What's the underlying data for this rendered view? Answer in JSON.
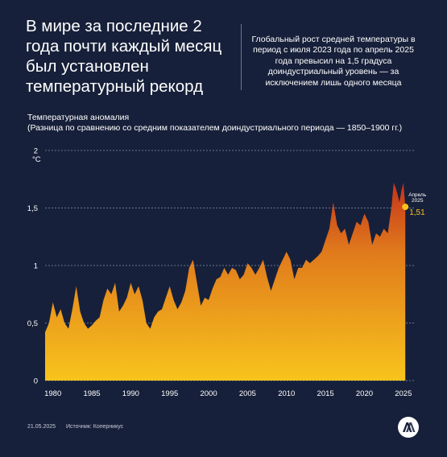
{
  "headline": "В мире за последние 2 года почти каждый  месяц  был установлен температурный рекорд",
  "deck": "Глобальный рост средней температуры в период с июля 2023 года по апрель 2025 года превысил на 1,5 градуса доиндустриальный уровень — за исключением лишь одного месяца",
  "subtitle_line1": "Температурная аномалия",
  "subtitle_line2": "(Разница по сравнению со средним показателем доиндустриального периода — 1850–1900 гг.)",
  "footer": {
    "date": "21.05.2025",
    "source": "Источник: Коперникус"
  },
  "colors": {
    "background": "#17203a",
    "area_top": "#d4491c",
    "area_bottom": "#f6c21c",
    "highlight": "#f6c21c",
    "grid": "#8a93aa"
  },
  "chart_data": {
    "type": "area",
    "title": "Температурная аномалия",
    "ylabel": "°C",
    "ylim": [
      0,
      2
    ],
    "xlim": [
      1979,
      2025.33
    ],
    "y_ticks": [
      "0",
      "0,5",
      "1",
      "1,5",
      "2"
    ],
    "x_ticks": [
      "1980",
      "1985",
      "1990",
      "1995",
      "2000",
      "2005",
      "2010",
      "2015",
      "2020",
      "2025"
    ],
    "grid": "dashed horizontal",
    "annotation": {
      "label": "Апрель 2025",
      "value_label": "1,51",
      "x": 2025.25,
      "y": 1.51
    },
    "series": [
      {
        "x": [
          1979.0,
          1979.5,
          1980.0,
          1980.5,
          1981.0,
          1981.5,
          1982.0,
          1982.5,
          1983.0,
          1983.5,
          1984.0,
          1984.5,
          1985.0,
          1985.5,
          1986.0,
          1986.5,
          1987.0,
          1987.5,
          1988.0,
          1988.5,
          1989.0,
          1989.5,
          1990.0,
          1990.5,
          1991.0,
          1991.5,
          1992.0,
          1992.5,
          1993.0,
          1993.5,
          1994.0,
          1994.5,
          1995.0,
          1995.5,
          1996.0,
          1996.5,
          1997.0,
          1997.5,
          1998.0,
          1998.5,
          1999.0,
          1999.5,
          2000.0,
          2000.5,
          2001.0,
          2001.5,
          2002.0,
          2002.5,
          2003.0,
          2003.5,
          2004.0,
          2004.5,
          2005.0,
          2005.5,
          2006.0,
          2006.5,
          2007.0,
          2007.5,
          2008.0,
          2008.5,
          2009.0,
          2009.5,
          2010.0,
          2010.5,
          2011.0,
          2011.5,
          2012.0,
          2012.5,
          2013.0,
          2013.5,
          2014.0,
          2014.5,
          2015.0,
          2015.5,
          2016.0,
          2016.5,
          2017.0,
          2017.5,
          2018.0,
          2018.5,
          2019.0,
          2019.5,
          2020.0,
          2020.5,
          2021.0,
          2021.5,
          2022.0,
          2022.5,
          2023.0,
          2023.5,
          2023.75,
          2024.0,
          2024.25,
          2024.5,
          2024.75,
          2025.0,
          2025.25
        ],
        "values": [
          0.42,
          0.5,
          0.68,
          0.55,
          0.62,
          0.5,
          0.45,
          0.62,
          0.82,
          0.6,
          0.5,
          0.45,
          0.48,
          0.52,
          0.55,
          0.7,
          0.8,
          0.75,
          0.85,
          0.6,
          0.65,
          0.72,
          0.85,
          0.75,
          0.82,
          0.7,
          0.5,
          0.45,
          0.55,
          0.6,
          0.62,
          0.72,
          0.82,
          0.7,
          0.62,
          0.68,
          0.78,
          0.98,
          1.05,
          0.85,
          0.65,
          0.72,
          0.7,
          0.8,
          0.88,
          0.9,
          0.98,
          0.92,
          0.98,
          0.96,
          0.88,
          0.92,
          1.02,
          0.98,
          0.92,
          0.98,
          1.05,
          0.9,
          0.78,
          0.88,
          0.98,
          1.05,
          1.12,
          1.05,
          0.88,
          0.98,
          0.98,
          1.05,
          1.02,
          1.05,
          1.08,
          1.12,
          1.22,
          1.32,
          1.55,
          1.35,
          1.28,
          1.32,
          1.18,
          1.28,
          1.38,
          1.35,
          1.45,
          1.38,
          1.18,
          1.28,
          1.25,
          1.32,
          1.28,
          1.52,
          1.72,
          1.68,
          1.62,
          1.55,
          1.65,
          1.72,
          1.51
        ]
      }
    ]
  }
}
